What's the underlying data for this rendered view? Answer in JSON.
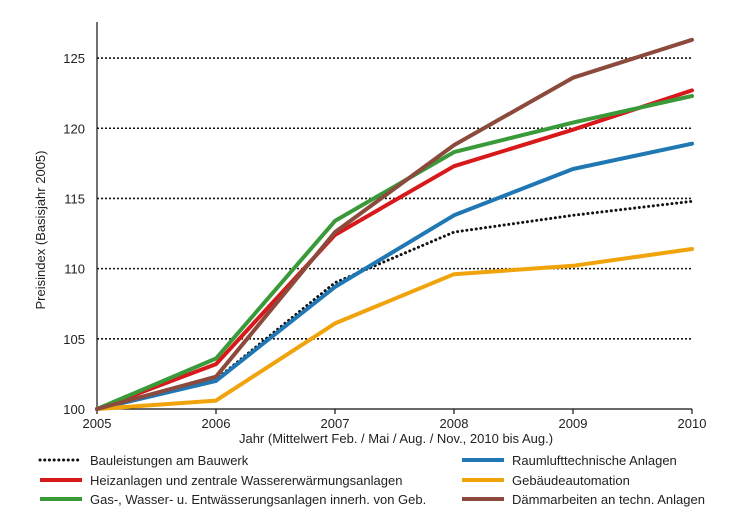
{
  "chart_data": {
    "type": "line",
    "xlabel": "Jahr (Mittelwert Feb. / Mai / Aug. / Nov., 2010 bis Aug.)",
    "ylabel": "Preisindex (Basisjahr 2005)",
    "x": [
      2005,
      2006,
      2007,
      2008,
      2009,
      2010
    ],
    "x_ticks": [
      "2005",
      "2006",
      "2007",
      "2008",
      "2009",
      "2010"
    ],
    "y_ticks": [
      "100",
      "105",
      "110",
      "115",
      "120",
      "125"
    ],
    "xlim": [
      2005,
      2010
    ],
    "ylim": [
      100,
      127
    ],
    "grid": "horizontal-dotted",
    "legend_position": "bottom",
    "series": [
      {
        "name": "Bauleistungen am Bauwerk",
        "color": "#111111",
        "dash": "dotted",
        "values": [
          100,
          102.1,
          109.0,
          112.6,
          113.8,
          114.8
        ]
      },
      {
        "name": "Raumlufttechnische Anlagen",
        "color": "#1f77b4",
        "dash": "solid",
        "values": [
          100,
          102.0,
          108.7,
          113.8,
          117.1,
          118.9
        ]
      },
      {
        "name": "Heizanlagen und zentrale Wassererwärmungsanlagen",
        "color": "#d7191c",
        "dash": "solid",
        "values": [
          100,
          103.2,
          112.4,
          117.3,
          119.9,
          122.7
        ]
      },
      {
        "name": "Gebäudeautomation",
        "color": "#f0a30a",
        "dash": "solid",
        "values": [
          100,
          100.6,
          106.1,
          109.6,
          110.2,
          111.4
        ]
      },
      {
        "name": "Gas-, Wasser- u. Entwässerungsanlagen innerh. von Geb.",
        "color": "#3a9a3a",
        "dash": "solid",
        "values": [
          100,
          103.6,
          113.4,
          118.3,
          120.4,
          122.3
        ]
      },
      {
        "name": "Dämmarbeiten an techn. Anlagen",
        "color": "#8b4a3c",
        "dash": "solid",
        "values": [
          100,
          102.3,
          112.6,
          118.8,
          123.6,
          126.3
        ]
      }
    ]
  }
}
